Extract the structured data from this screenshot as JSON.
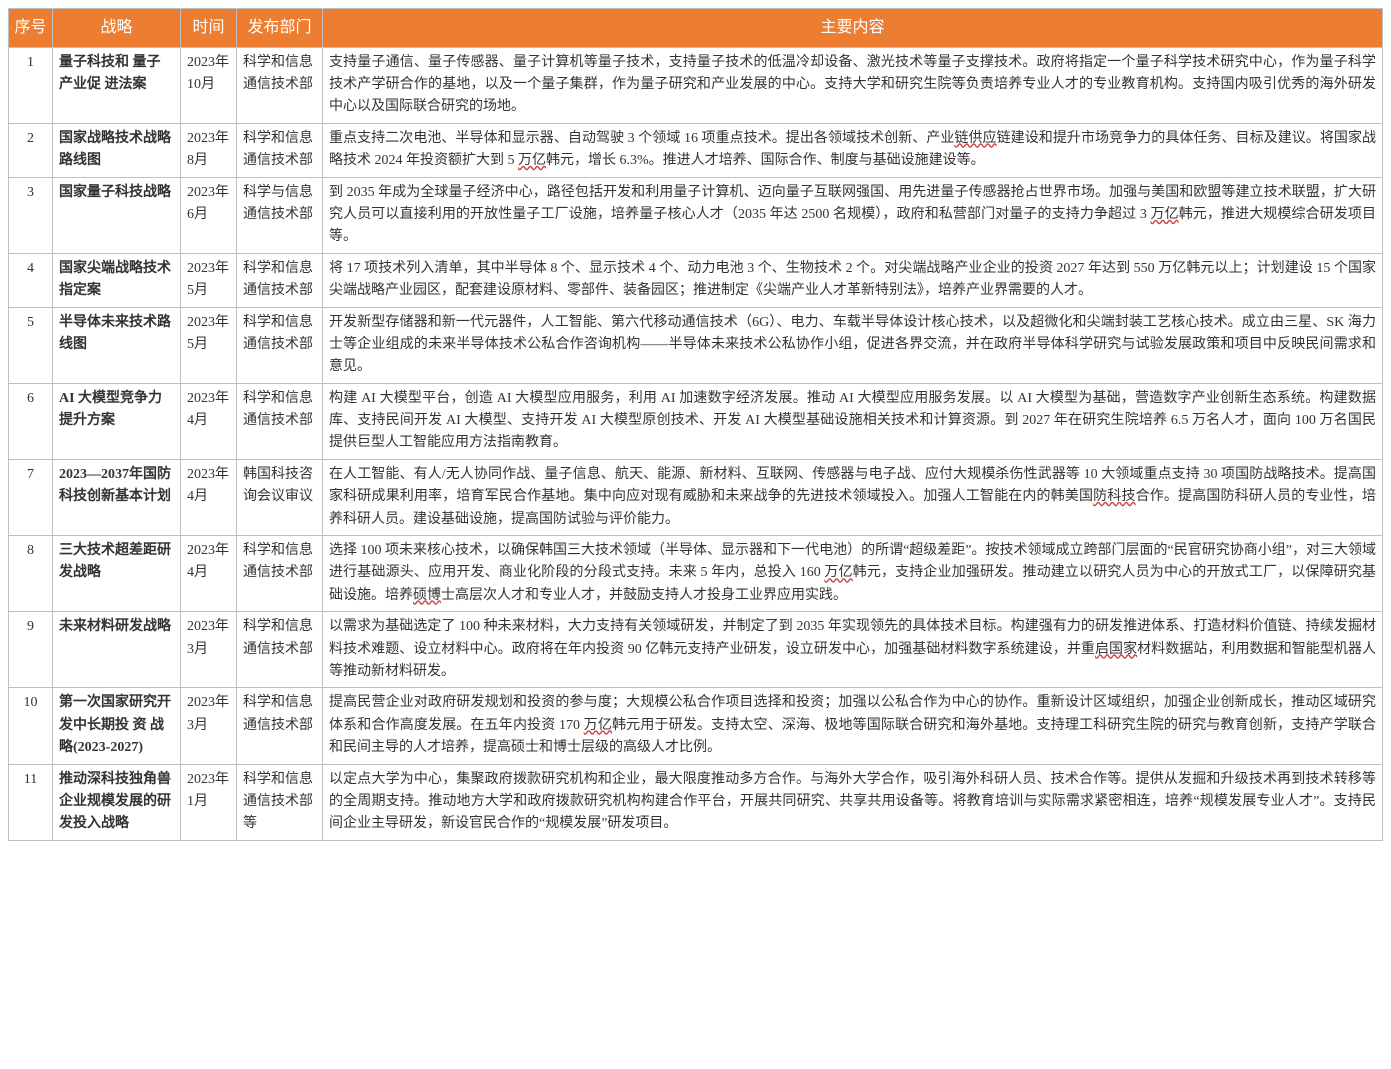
{
  "header": {
    "idx": "序号",
    "strategy": "战略",
    "time": "时间",
    "dept": "发布部门",
    "body": "主要内容"
  },
  "colors": {
    "header_bg": "#ed7d31",
    "header_fg": "#ffffff",
    "border": "#c0c0c0",
    "wavy_underline": "#d04040"
  },
  "rows": [
    {
      "idx": "1",
      "strategy": "量子科技和 量子产业促 进法案",
      "time": "2023年10月",
      "dept": "科学和信息通信技术部",
      "body_segments": [
        {
          "t": "支持量子通信、量子传感器、量子计算机等量子技术，支持量子技术的低温冷却设备、激光技术等量子支撑技术。政府将指定一个量子科学技术研究中心，作为量子科学技术产学研合作的基地，以及一个量子集群，作为量子研究和产业发展的中心。支持大学和研究生院等负责培养专业人才的专业教育机构。支持国内吸引优秀的海外研发中心以及国际联合研究的场地。"
        }
      ]
    },
    {
      "idx": "2",
      "strategy": "国家战略技术战略路线图",
      "time": "2023年8月",
      "dept": "科学和信息通信技术部",
      "body_segments": [
        {
          "t": "重点支持二次电池、半导体和显示器、自动驾驶 3 个领域 16 项重点技术。提出各领域技术创新、产业"
        },
        {
          "t": "链供应",
          "u": true
        },
        {
          "t": "链建设和提升市场竞争力的具体任务、目标及建议。将国家战略技术 2024 年投资额扩大到 5 "
        },
        {
          "t": "万亿",
          "u": true
        },
        {
          "t": "韩元，增长 6.3%。推进人才培养、国际合作、制度与基础设施建设等。"
        }
      ]
    },
    {
      "idx": "3",
      "strategy": "国家量子科技战略",
      "time": "2023年6月",
      "dept": "科学与信息通信技术部",
      "body_segments": [
        {
          "t": "到 2035 年成为全球量子经济中心，路径包括开发和利用量子计算机、迈向量子互联网强国、用先进量子传感器抢占世界市场。加强与美国和欧盟等建立技术联盟，扩大研究人员可以直接利用的开放性量子工厂设施，培养量子核心人才（2035 年达 2500 名规模），政府和私营部门对量子的支持力争超过 3 "
        },
        {
          "t": "万亿",
          "u": true
        },
        {
          "t": "韩元，推进大规模综合研发项目等。"
        }
      ]
    },
    {
      "idx": "4",
      "strategy": "国家尖端战略技术指定案",
      "time": "2023年5月",
      "dept": "科学和信息通信技术部",
      "body_segments": [
        {
          "t": "将 17 项技术列入清单，其中半导体 8 个、显示技术 4 个、动力电池 3 个、生物技术 2 个。对尖端战略产业企业的投资 2027 年达到 550 万亿韩元以上；计划建设 15 个国家尖端战略产业园区，配套建设原材料、零部件、装备园区；推进制定《尖端产业人才革新特别法》，培养产业界需要的人才。"
        }
      ]
    },
    {
      "idx": "5",
      "strategy": "半导体未来技术路线图",
      "time": "2023年5月",
      "dept": "科学和信息通信技术部",
      "body_segments": [
        {
          "t": "开发新型存储器和新一代元器件，人工智能、第六代移动通信技术（6G）、电力、车载半导体设计核心技术，以及超微化和尖端封装工艺核心技术。成立由三星、SK 海力士等企业组成的未来半导体技术公私合作咨询机构——半导体未来技术公私协作小组，促进各界交流，并在政府半导体科学研究与试验发展政策和项目中反映民间需求和意见。"
        }
      ]
    },
    {
      "idx": "6",
      "strategy": "AI 大模型竞争力提升方案",
      "time": "2023年4月",
      "dept": "科学和信息通信技术部",
      "body_segments": [
        {
          "t": "构建 AI 大模型平台，创造 AI 大模型应用服务，利用 AI 加速数字经济发展。推动 AI 大模型应用服务发展。以 AI 大模型为基础，营造数字产业创新生态系统。构建数据库、支持民间开发 AI 大模型、支持开发 AI 大模型原创技术、开发 AI 大模型基础设施相关技术和计算资源。到 2027 年在研究生院培养 6.5 万名人才，面向 100 万名国民提供巨型人工智能应用方法指南教育。"
        }
      ]
    },
    {
      "idx": "7",
      "strategy": "2023—2037年国防科技创新基本计划",
      "time": "2023年4月",
      "dept": "韩国科技咨询会议审议",
      "body_segments": [
        {
          "t": "在人工智能、有人/无人协同作战、量子信息、航天、能源、新材料、互联网、传感器与电子战、应付大规模杀伤性武器等 10 大领域重点支持 30 项国防战略技术。提高国家科研成果利用率，培育军民合作基地。集中向应对现有威胁和未来战争的先进技术领域投入。加强人工智能在内的韩美国"
        },
        {
          "t": "防科技",
          "u": true
        },
        {
          "t": "合作。提高国防科研人员的专业性，培养科研人员。建设基础设施，提高国防试验与评价能力。"
        }
      ]
    },
    {
      "idx": "8",
      "strategy": "三大技术超差距研发战略",
      "time": "2023年4月",
      "dept": "科学和信息通信技术部",
      "body_segments": [
        {
          "t": "选择 100 项未来核心技术，以确保韩国三大技术领域（半导体、显示器和下一代电池）的所谓“超级差距”。按技术领域成立跨部门层面的“民官研究协商小组”，对三大领域进行基础源头、应用开发、商业化阶段的分段式支持。未来 5 年内，总投入 160 "
        },
        {
          "t": "万亿",
          "u": true
        },
        {
          "t": "韩元，支持企业加强研发。推动建立以研究人员为中心的开放式工厂，以保障研究基础设施。培养"
        },
        {
          "t": "硕博",
          "u": true
        },
        {
          "t": "士高层次人才和专业人才，并鼓励支持人才投身工业界应用实践。"
        }
      ]
    },
    {
      "idx": "9",
      "strategy": "未来材料研发战略",
      "time": "2023年3月",
      "dept": "科学和信息通信技术部",
      "body_segments": [
        {
          "t": "以需求为基础选定了 100 种未来材料，大力支持有关领域研发，并制定了到 2035 年实现领先的具体技术目标。构建强有力的研发推进体系、打造材料价值链、持续发掘材料技术难题、设立材料中心。政府将在年内投资 90 亿韩元支持产业研发，设立研发中心，加强基础材料数字系统建设，并重"
        },
        {
          "t": "启国家",
          "u": true
        },
        {
          "t": "材料数据站，利用数据和智能型机器人等推动新材料研发。"
        }
      ]
    },
    {
      "idx": "10",
      "strategy": "第一次国家研究开发中长期投 资 战 略(2023-2027)",
      "time": "2023年3月",
      "dept": "科学和信息通信技术部",
      "body_segments": [
        {
          "t": "提高民营企业对政府研发规划和投资的参与度；大规模公私合作项目选择和投资；加强以公私合作为中心的协作。重新设计区域组织，加强企业创新成长，推动区域研究体系和合作高度发展。在五年内投资 170 "
        },
        {
          "t": "万亿",
          "u": true
        },
        {
          "t": "韩元用于研发。支持太空、深海、极地等国际联合研究和海外基地。支持理工科研究生院的研究与教育创新，支持产学联合和民间主导的人才培养，提高硕士和博士层级的高级人才比例。"
        }
      ]
    },
    {
      "idx": "11",
      "strategy": "推动深科技独角兽企业规模发展的研发投入战略",
      "time": "2023年1月",
      "dept": "科学和信息通信技术部等",
      "body_segments": [
        {
          "t": "以定点大学为中心，集聚政府拨款研究机构和企业，最大限度推动多方合作。与海外大学合作，吸引海外科研人员、技术合作等。提供从发掘和升级技术再到技术转移等的全周期支持。推动地方大学和政府拨款研究机构构建合作平台，开展共同研究、共享共用设备等。将教育培训与实际需求紧密相连，培养“规模发展专业人才”。支持民间企业主导研发，新设官民合作的“规模发展”研发项目。"
        }
      ]
    }
  ]
}
